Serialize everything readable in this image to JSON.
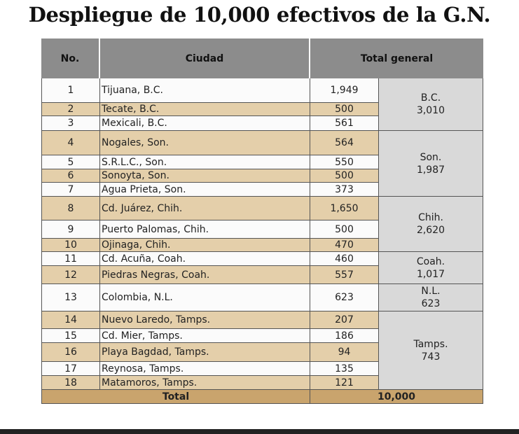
{
  "title": "Despliegue de 10,000 efectivos de la G.N.",
  "table": {
    "headers": [
      "No.",
      "Ciudad",
      "Total general"
    ],
    "rows": [
      [
        "1",
        "Tijuana, B.C.",
        "1,949"
      ],
      [
        "2",
        "Tecate, B.C.",
        "500"
      ],
      [
        "3",
        "Mexicali, B.C.",
        "561"
      ],
      [
        "4",
        "Nogales, Son.",
        "564"
      ],
      [
        "5",
        "S.R.L.C., Son.",
        "550"
      ],
      [
        "6",
        "Sonoyta, Son.",
        "500"
      ],
      [
        "7",
        "Agua Prieta, Son.",
        "373"
      ],
      [
        "8",
        "Cd. Juárez, Chih.",
        "1,650"
      ],
      [
        "9",
        "Puerto Palomas, Chih.",
        "500"
      ],
      [
        "10",
        "Ojinaga, Chih.",
        "470"
      ],
      [
        "11",
        "Cd. Acuña, Coah.",
        "460"
      ],
      [
        "12",
        "Piedras Negras, Coah.",
        "557"
      ],
      [
        "13",
        "Colombia, N.L.",
        "623"
      ],
      [
        "14",
        "Nuevo Laredo, Tamps.",
        "207"
      ],
      [
        "15",
        "Cd. Mier, Tamps.",
        "186"
      ],
      [
        "16",
        "Playa Bagdad, Tamps.",
        "94"
      ],
      [
        "17",
        "Reynosa, Tamps.",
        "135"
      ],
      [
        "18",
        "Matamoros, Tamps.",
        "121"
      ]
    ],
    "groups": [
      {
        "state": "B.C.",
        "total": "3,010"
      },
      {
        "state": "Son.",
        "total": "1,987"
      },
      {
        "state": "Chih.",
        "total": "2,620"
      },
      {
        "state": "Coah.",
        "total": "1,017"
      },
      {
        "state": "N.L.",
        "total": "623"
      },
      {
        "state": "Tamps.",
        "total": "743"
      }
    ],
    "total": {
      "label": "Total",
      "value": "10,000"
    }
  }
}
